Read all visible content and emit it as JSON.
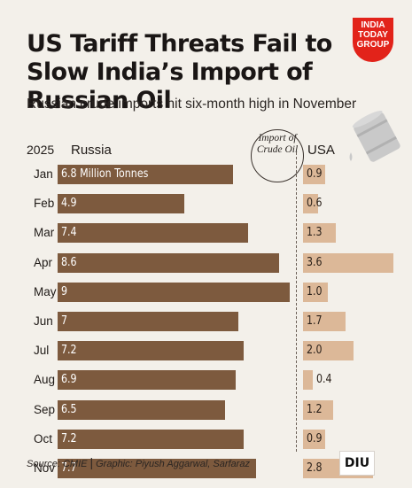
{
  "header": {
    "title": "US Tariff Threats Fail to Slow India’s Import of Russian Oil",
    "subtitle": "Russian crude imports hit six-month high in November"
  },
  "logo": {
    "line1": "INDIA",
    "line2": "TODAY",
    "line3": "GROUP",
    "color": "#e2231a"
  },
  "legend": {
    "import_label": "Import of Crude Oil"
  },
  "colors": {
    "russia": "#7d5a3e",
    "usa": "#dcb898",
    "background": "#f3f0ea"
  },
  "footer": {
    "source": "Source: CMIE",
    "separator": "|",
    "credit": "Graphic: Piyush Aggarwal, Sarfaraz",
    "brand": "DIU"
  },
  "chart_data": {
    "type": "bar",
    "orientation": "horizontal",
    "year": "2025",
    "unit": "Million Tonnes",
    "categories": [
      "Jan",
      "Feb",
      "Mar",
      "Apr",
      "May",
      "Jun",
      "Jul",
      "Aug",
      "Sep",
      "Oct",
      "Nov"
    ],
    "series": [
      {
        "name": "Russia",
        "values": [
          6.8,
          4.9,
          7.4,
          8.6,
          9,
          7,
          7.2,
          6.9,
          6.5,
          7.2,
          7.7
        ],
        "labels": [
          "6.8",
          "4.9",
          "7.4",
          "8.6",
          "9",
          "7",
          "7.2",
          "6.9",
          "6.5",
          "7.2",
          "7.7"
        ]
      },
      {
        "name": "USA",
        "values": [
          0.9,
          0.6,
          1.3,
          3.6,
          1.0,
          1.7,
          2.0,
          0.4,
          1.2,
          0.9,
          2.8
        ],
        "labels": [
          "0.9",
          "0.6",
          "1.3",
          "3.6",
          "1.0",
          "1.7",
          "2.0",
          "0.4",
          "1.2",
          "0.9",
          "2.8"
        ]
      }
    ]
  }
}
